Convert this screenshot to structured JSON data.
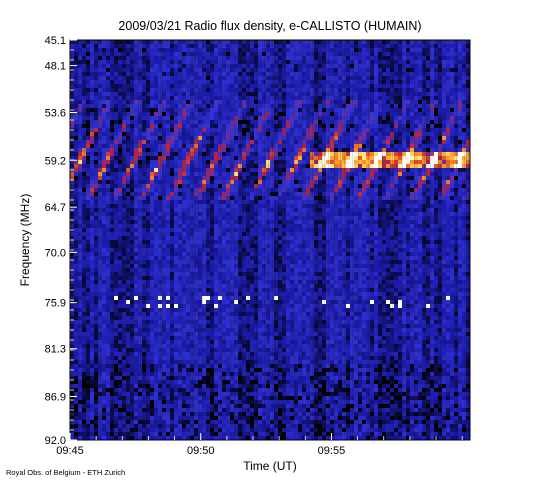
{
  "chart_data": {
    "type": "heatmap",
    "title": "2009/03/21  Radio flux density, e-CALLISTO (HUMAIN)",
    "xlabel": "Time (UT)",
    "ylabel": "Frequency (MHz)",
    "x_ticks": [
      "09:45",
      "09:50",
      "09:55"
    ],
    "x_range_minutes": [
      0,
      15.3
    ],
    "x_tick_minutes": [
      0,
      5,
      10
    ],
    "y_ticks": [
      "45.1",
      "48.1",
      "53.6",
      "59.2",
      "64.7",
      "70.0",
      "75.9",
      "81.3",
      "86.9",
      "92.0"
    ],
    "y_range_mhz": [
      45.1,
      92.0
    ],
    "y_axis_inverted": true,
    "colormap": [
      "#000000",
      "#1a1aa8",
      "#3535d8",
      "#c0203a",
      "#ff8a20",
      "#ffe060",
      "#ffffff"
    ],
    "features": [
      {
        "kind": "drifting_bursts",
        "freq_range_mhz": [
          52,
          64
        ],
        "time_range_minutes": [
          0,
          15.3
        ],
        "peak_freq_mhz": 59.2
      },
      {
        "kind": "bright_band",
        "freq_mhz": 59.2,
        "time_range_minutes": [
          9.2,
          15.3
        ]
      },
      {
        "kind": "sparse_spikes",
        "freq_mhz": 75.9
      }
    ],
    "footer": "Royal Obs. of Belgium - ETH Zurich"
  }
}
